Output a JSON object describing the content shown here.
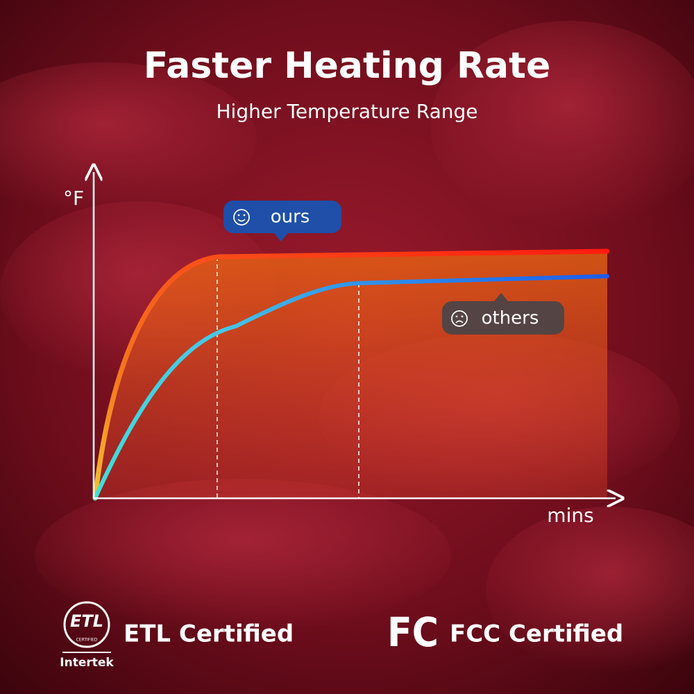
{
  "header": {
    "title": "Faster Heating Rate",
    "subtitle": "Higher Temperature Range"
  },
  "graph": {
    "y_axis_label": "°F",
    "x_axis_label": "mins",
    "callouts": {
      "ours": "ours",
      "others": "others"
    }
  },
  "certifications": [
    {
      "logo_text": "ETL",
      "logo_subtext": "CERTIFIED",
      "logo_caption": "Intertek",
      "label": "ETL Certified"
    },
    {
      "logo_text": "FC",
      "label": "FCC Certified"
    }
  ]
}
